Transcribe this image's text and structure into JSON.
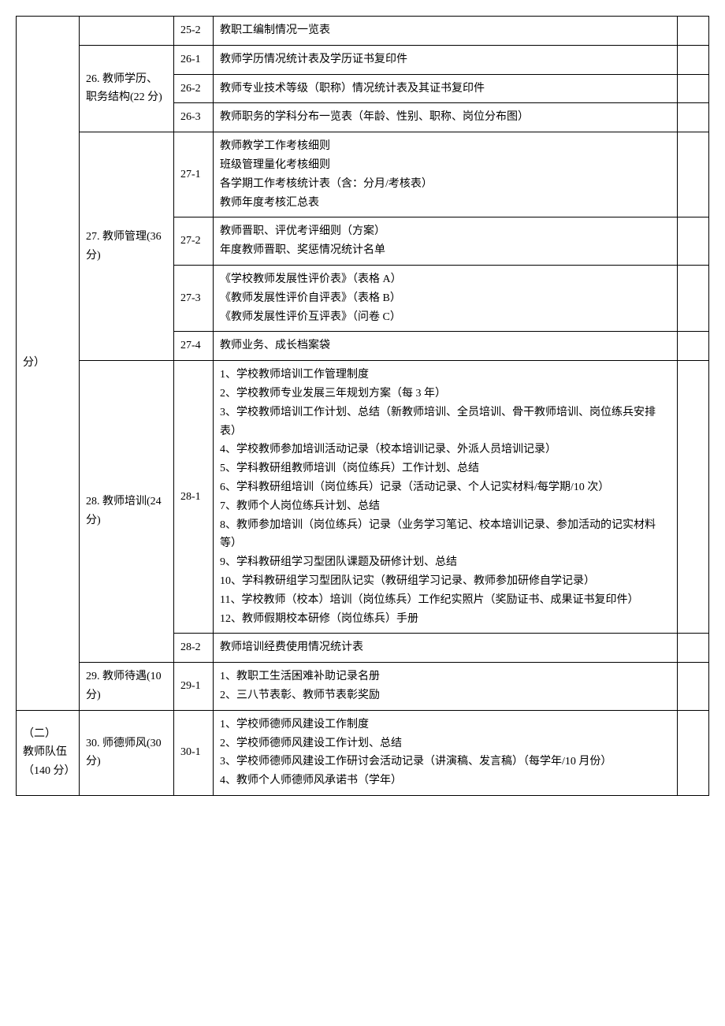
{
  "section1": {
    "label": "分）"
  },
  "section2": {
    "label": "（二）\n教师队伍\n（140 分）"
  },
  "rows": [
    {
      "code": "25-2",
      "content": "教职工编制情况一览表"
    },
    {
      "code": "26-1",
      "content": "教师学历情况统计表及学历证书复印件"
    },
    {
      "code": "26-2",
      "content": "教师专业技术等级（职称）情况统计表及其证书复印件"
    },
    {
      "code": "26-3",
      "content": "教师职务的学科分布一览表（年龄、性别、职称、岗位分布图）"
    },
    {
      "code": "27-1",
      "content": "教师教学工作考核细则\n班级管理量化考核细则\n各学期工作考核统计表（含：分月/考核表）\n教师年度考核汇总表"
    },
    {
      "code": "27-2",
      "content": "教师晋职、评优考评细则（方案）\n年度教师晋职、奖惩情况统计名单"
    },
    {
      "code": "27-3",
      "content": "《学校教师发展性评价表》（表格 A）\n《教师发展性评价自评表》（表格 B）\n《教师发展性评价互评表》（问卷 C）"
    },
    {
      "code": "27-4",
      "content": "教师业务、成长档案袋"
    },
    {
      "code": "28-1",
      "content": "1、学校教师培训工作管理制度\n2、学校教师专业发展三年规划方案（每 3 年）\n3、学校教师培训工作计划、总结（新教师培训、全员培训、骨干教师培训、岗位练兵安排表）\n4、学校教师参加培训活动记录（校本培训记录、外派人员培训记录）\n5、学科教研组教师培训（岗位练兵）工作计划、总结\n6、学科教研组培训（岗位练兵）记录（活动记录、个人记实材料/每学期/10 次）\n7、教师个人岗位练兵计划、总结\n8、教师参加培训（岗位练兵）记录（业务学习笔记、校本培训记录、参加活动的记实材料等）\n9、学科教研组学习型团队课题及研修计划、总结\n10、学科教研组学习型团队记实（教研组学习记录、教师参加研修自学记录）\n11、学校教师（校本）培训（岗位练兵）工作纪实照片（奖励证书、成果证书复印件）\n12、教师假期校本研修（岗位练兵）手册"
    },
    {
      "code": "28-2",
      "content": "教师培训经费使用情况统计表"
    },
    {
      "code": "29-1",
      "content": "1、教职工生活困难补助记录名册\n2、三八节表彰、教师节表彰奖励"
    },
    {
      "code": "30-1",
      "content": "1、学校师德师风建设工作制度\n2、学校师德师风建设工作计划、总结\n3、学校师德师风建设工作研讨会活动记录（讲演稿、发言稿）（每学年/10 月份）\n4、教师个人师德师风承诺书（学年）"
    }
  ],
  "groups": [
    {
      "label": "26. 教师学历、职务结构(22 分)"
    },
    {
      "label": "27. 教师管理(36分)"
    },
    {
      "label": "28. 教师培训(24分)"
    },
    {
      "label": "29. 教师待遇(10分)"
    },
    {
      "label": "30. 师德师风(30分)"
    }
  ]
}
